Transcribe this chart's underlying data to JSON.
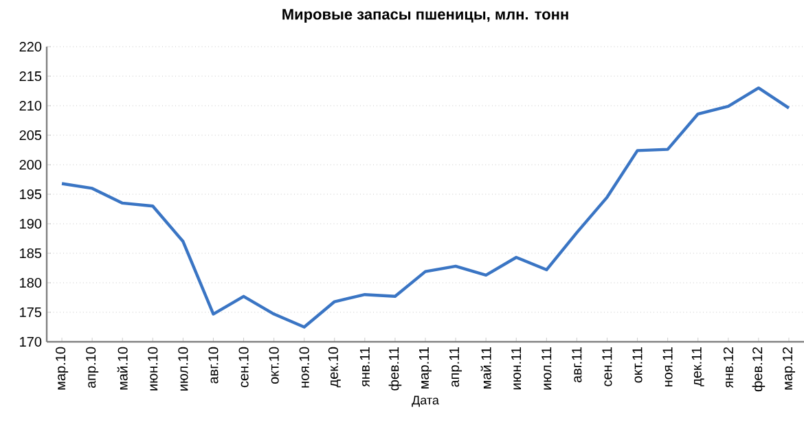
{
  "chart_data": {
    "type": "line",
    "title": "Мировые запасы пшеницы, млн. тонн",
    "xlabel": "Дата",
    "categories": [
      "мар.10",
      "апр.10",
      "май.10",
      "июн.10",
      "июл.10",
      "авг.10",
      "сен.10",
      "окт.10",
      "ноя.10",
      "дек.10",
      "янв.11",
      "фев.11",
      "мар.11",
      "апр.11",
      "май.11",
      "июн.11",
      "июл.11",
      "авг.11",
      "сен.11",
      "окт.11",
      "ноя.11",
      "дек.11",
      "янв.12",
      "фев.12",
      "мар.12"
    ],
    "values": [
      196.8,
      196.0,
      193.5,
      193.0,
      187.0,
      174.7,
      177.7,
      174.7,
      172.5,
      176.8,
      178.0,
      177.7,
      181.9,
      182.8,
      181.3,
      184.3,
      182.2,
      188.5,
      194.5,
      202.4,
      202.6,
      208.6,
      209.9,
      213.0,
      209.6
    ],
    "color": "#3a75c4",
    "ylim": [
      170,
      220
    ],
    "yticks": [
      170,
      175,
      180,
      185,
      190,
      195,
      200,
      205,
      210,
      215,
      220
    ],
    "grid": "y",
    "marker": "none",
    "line_style": "solid"
  }
}
